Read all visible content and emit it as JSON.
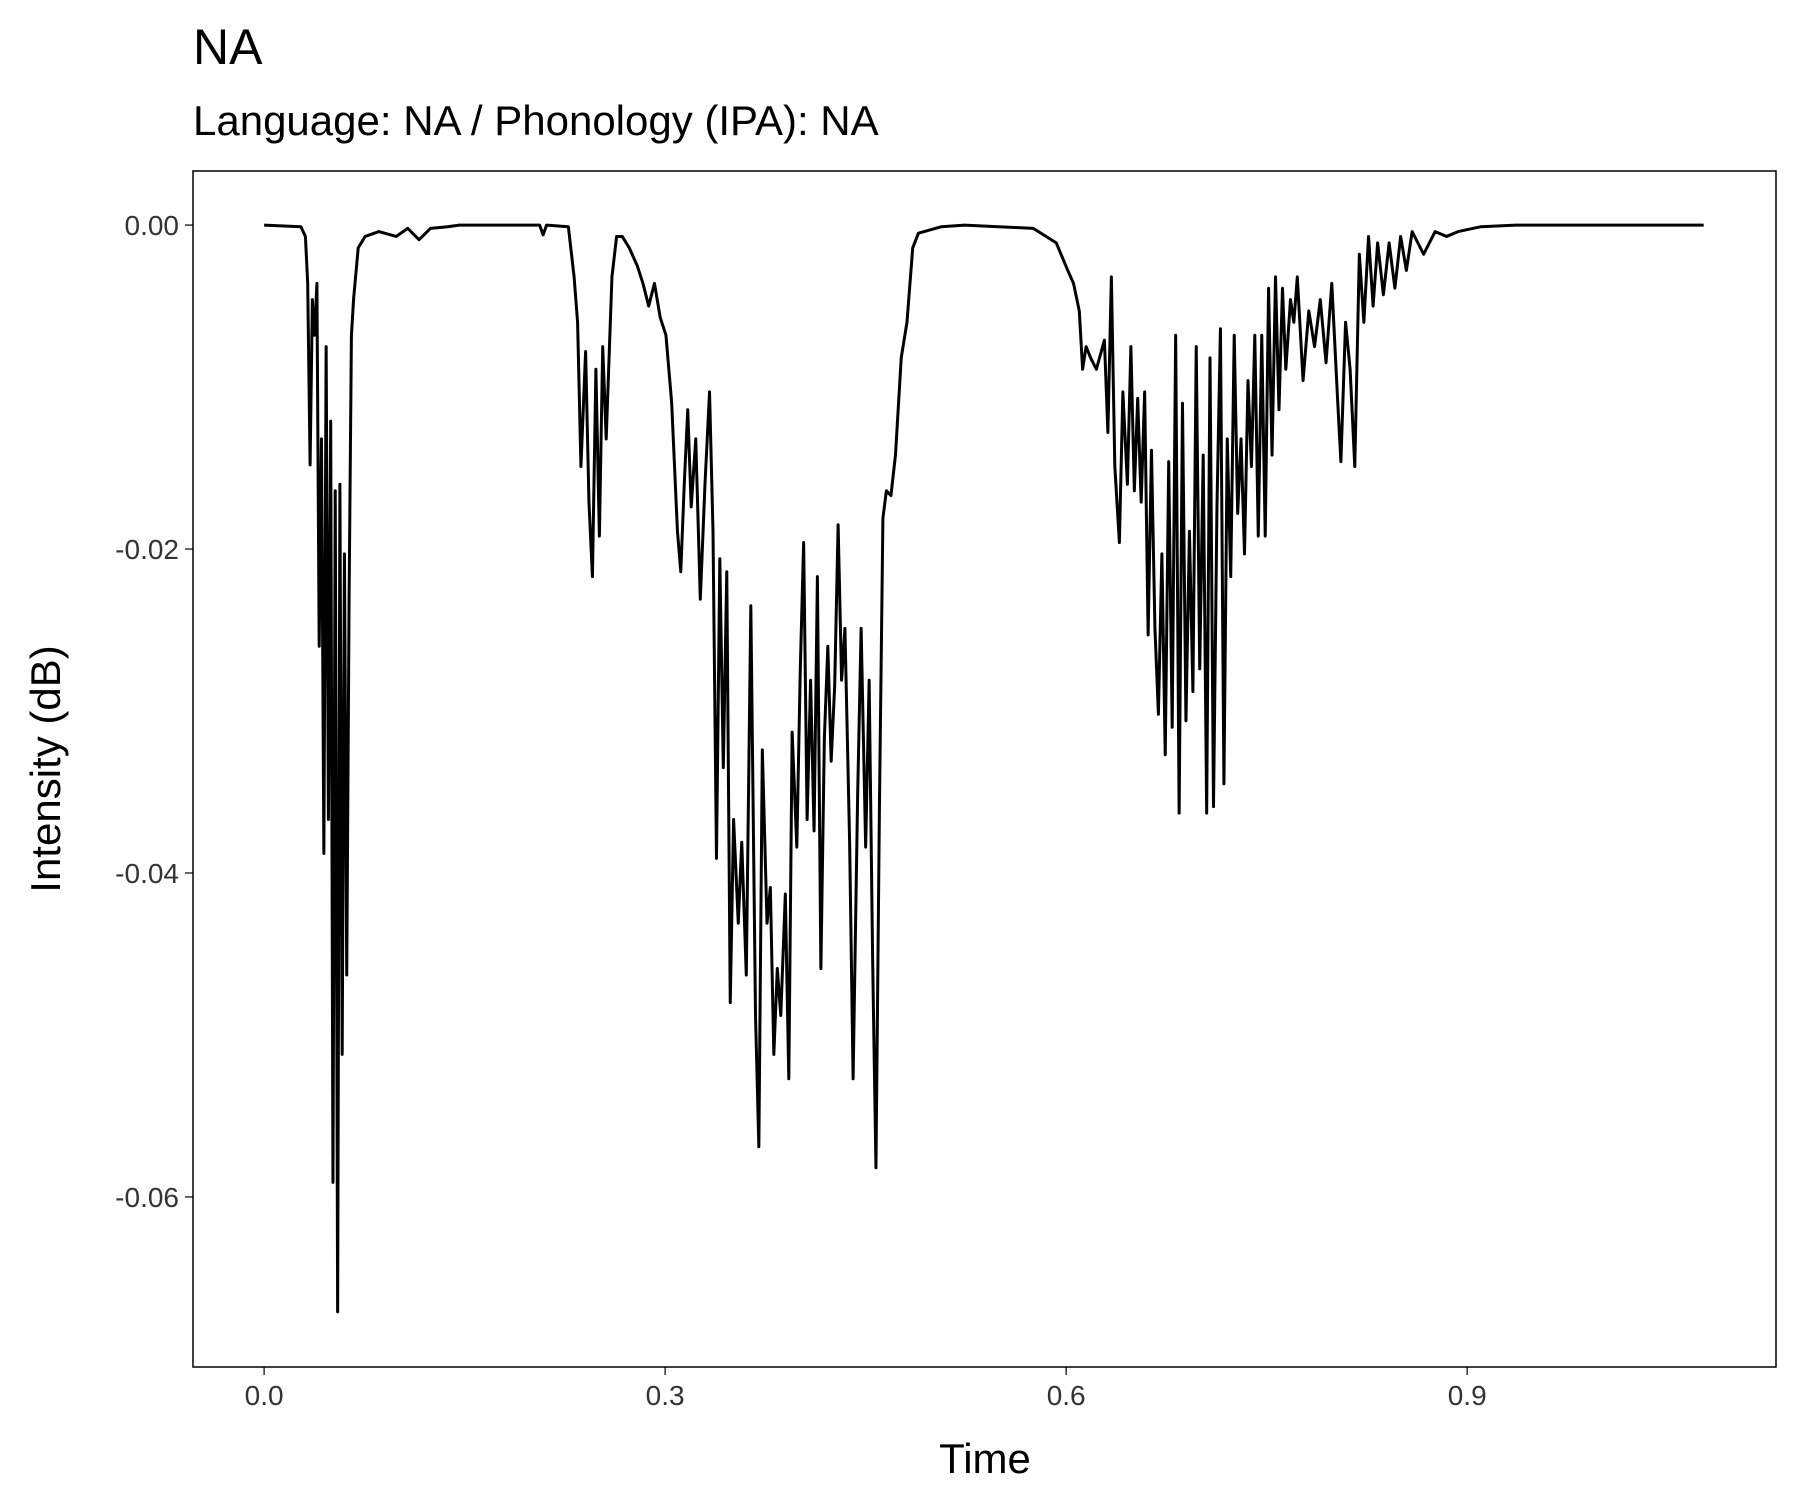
{
  "chart_data": {
    "type": "line",
    "title": "NA",
    "subtitle": "Language: NA / Phonology (IPA): NA",
    "x_label": "Time",
    "y_label": "Intensity (dB)",
    "color": "#000000",
    "grid": false,
    "xlim": [
      -0.0532,
      1.131
    ],
    "ylim": [
      -0.0705,
      0.00334
    ],
    "xticks": [
      {
        "value": 0,
        "label": "0.0"
      },
      0.3,
      0.6,
      0.9
    ],
    "yticks": [
      {
        "value": 0,
        "label": "0.00"
      },
      -0.02,
      -0.04,
      -0.06
    ],
    "x": [
      0,
      0.0275,
      0.0309,
      0.0326,
      0.0344,
      0.0361,
      0.0378,
      0.0395,
      0.0412,
      0.0429,
      0.0447,
      0.0464,
      0.0481,
      0.0498,
      0.0515,
      0.0532,
      0.055,
      0.0567,
      0.0584,
      0.0601,
      0.0618,
      0.0636,
      0.0653,
      0.067,
      0.0704,
      0.0756,
      0.0859,
      0.0988,
      0.1074,
      0.1159,
      0.1245,
      0.1374,
      0.146,
      0.2061,
      0.2087,
      0.2113,
      0.2276,
      0.2319,
      0.2345,
      0.237,
      0.2405,
      0.243,
      0.2456,
      0.2482,
      0.2508,
      0.2533,
      0.2559,
      0.2602,
      0.2637,
      0.2679,
      0.2731,
      0.2791,
      0.2834,
      0.2877,
      0.292,
      0.2963,
      0.3006,
      0.3049,
      0.3092,
      0.3117,
      0.3143,
      0.3169,
      0.3195,
      0.3229,
      0.3263,
      0.3298,
      0.3332,
      0.3358,
      0.3384,
      0.3409,
      0.3435,
      0.3461,
      0.3487,
      0.3512,
      0.3547,
      0.3573,
      0.3607,
      0.3641,
      0.3676,
      0.3701,
      0.3727,
      0.3762,
      0.3787,
      0.3813,
      0.3839,
      0.3865,
      0.3899,
      0.3925,
      0.395,
      0.3985,
      0.4011,
      0.4036,
      0.4062,
      0.4088,
      0.4114,
      0.4139,
      0.4165,
      0.4191,
      0.4217,
      0.4242,
      0.4268,
      0.4294,
      0.432,
      0.4345,
      0.438,
      0.4406,
      0.444,
      0.4466,
      0.45,
      0.4526,
      0.4552,
      0.4577,
      0.4603,
      0.4629,
      0.4655,
      0.4689,
      0.4723,
      0.4766,
      0.4809,
      0.4852,
      0.4895,
      0.5067,
      0.5239,
      0.5754,
      0.5926,
      0.6012,
      0.6055,
      0.6098,
      0.6123,
      0.6149,
      0.6183,
      0.6226,
      0.6286,
      0.6312,
      0.6338,
      0.6364,
      0.6398,
      0.6424,
      0.6458,
      0.6484,
      0.651,
      0.6535,
      0.6561,
      0.6587,
      0.6613,
      0.6638,
      0.6664,
      0.669,
      0.6716,
      0.6741,
      0.6767,
      0.6793,
      0.6819,
      0.6845,
      0.687,
      0.6896,
      0.6922,
      0.6948,
      0.6973,
      0.6999,
      0.7025,
      0.7051,
      0.7076,
      0.7102,
      0.7128,
      0.7154,
      0.718,
      0.7205,
      0.7231,
      0.7257,
      0.7283,
      0.7308,
      0.7334,
      0.736,
      0.7386,
      0.7411,
      0.7437,
      0.7463,
      0.7489,
      0.7514,
      0.754,
      0.7566,
      0.7592,
      0.7618,
      0.7643,
      0.7678,
      0.7703,
      0.7729,
      0.7772,
      0.7815,
      0.7858,
      0.7901,
      0.7944,
      0.7987,
      0.803,
      0.8055,
      0.809,
      0.8124,
      0.8159,
      0.8193,
      0.8227,
      0.8262,
      0.8296,
      0.833,
      0.8373,
      0.8416,
      0.8459,
      0.8502,
      0.8545,
      0.8588,
      0.8674,
      0.876,
      0.8846,
      0.8932,
      0.9103,
      0.9361,
      1.0769
    ],
    "values": [
      0,
      -0.0001,
      -0.0007,
      -0.0036,
      -0.0148,
      -0.0046,
      -0.0068,
      -0.0036,
      -0.026,
      -0.0132,
      -0.0388,
      -0.0075,
      -0.0367,
      -0.0121,
      -0.0591,
      -0.0164,
      -0.0671,
      -0.016,
      -0.0512,
      -0.0203,
      -0.0463,
      -0.0228,
      -0.0068,
      -0.0045,
      -0.0014,
      -0.0007,
      -0.0004,
      -0.0007,
      -0.0002,
      -0.0009,
      -0.0002,
      -0.0001,
      0,
      0,
      -0.0006,
      0,
      -0.0001,
      -0.0032,
      -0.006,
      -0.0149,
      -0.0078,
      -0.0171,
      -0.0217,
      -0.0089,
      -0.0192,
      -0.0075,
      -0.0132,
      -0.0032,
      -0.0007,
      -0.0007,
      -0.0014,
      -0.0025,
      -0.0036,
      -0.005,
      -0.0036,
      -0.0057,
      -0.0068,
      -0.011,
      -0.0189,
      -0.0214,
      -0.016,
      -0.0114,
      -0.0174,
      -0.0132,
      -0.0231,
      -0.016,
      -0.0103,
      -0.0189,
      -0.0391,
      -0.0206,
      -0.0335,
      -0.0214,
      -0.048,
      -0.0367,
      -0.0431,
      -0.0381,
      -0.0463,
      -0.0235,
      -0.0488,
      -0.0569,
      -0.0324,
      -0.0431,
      -0.0409,
      -0.0512,
      -0.0459,
      -0.0488,
      -0.0413,
      -0.0527,
      -0.0313,
      -0.0384,
      -0.0274,
      -0.0196,
      -0.0367,
      -0.0281,
      -0.0374,
      -0.0217,
      -0.0459,
      -0.0317,
      -0.026,
      -0.0331,
      -0.0285,
      -0.0185,
      -0.0281,
      -0.0249,
      -0.0381,
      -0.0527,
      -0.0352,
      -0.0249,
      -0.0384,
      -0.0281,
      -0.0452,
      -0.0582,
      -0.0359,
      -0.0181,
      -0.0164,
      -0.0167,
      -0.0142,
      -0.0082,
      -0.006,
      -0.0014,
      -0.0005,
      -0.0001,
      0,
      -0.0002,
      -0.0011,
      -0.0028,
      -0.0036,
      -0.0053,
      -0.0089,
      -0.0075,
      -0.0082,
      -0.0089,
      -0.0071,
      -0.0128,
      -0.0032,
      -0.0149,
      -0.0196,
      -0.0103,
      -0.016,
      -0.0075,
      -0.0164,
      -0.0107,
      -0.0171,
      -0.0103,
      -0.0253,
      -0.0139,
      -0.0249,
      -0.0302,
      -0.0203,
      -0.0327,
      -0.0146,
      -0.031,
      -0.0068,
      -0.0363,
      -0.011,
      -0.0306,
      -0.0189,
      -0.0288,
      -0.0075,
      -0.0274,
      -0.0142,
      -0.0363,
      -0.0082,
      -0.0359,
      -0.0174,
      -0.0064,
      -0.0345,
      -0.0132,
      -0.0217,
      -0.0068,
      -0.0178,
      -0.0132,
      -0.0203,
      -0.0096,
      -0.0149,
      -0.0068,
      -0.0192,
      -0.0068,
      -0.0192,
      -0.0039,
      -0.0142,
      -0.0032,
      -0.0114,
      -0.0039,
      -0.0089,
      -0.0046,
      -0.006,
      -0.0032,
      -0.0096,
      -0.0053,
      -0.0075,
      -0.0046,
      -0.0085,
      -0.0036,
      -0.0107,
      -0.0146,
      -0.006,
      -0.0089,
      -0.0149,
      -0.0018,
      -0.006,
      -0.0007,
      -0.005,
      -0.0011,
      -0.0043,
      -0.0011,
      -0.0039,
      -0.0007,
      -0.0028,
      -0.0004,
      -0.0018,
      -0.0004,
      -0.0007,
      -0.0004,
      -0.0001,
      0,
      0
    ]
  }
}
